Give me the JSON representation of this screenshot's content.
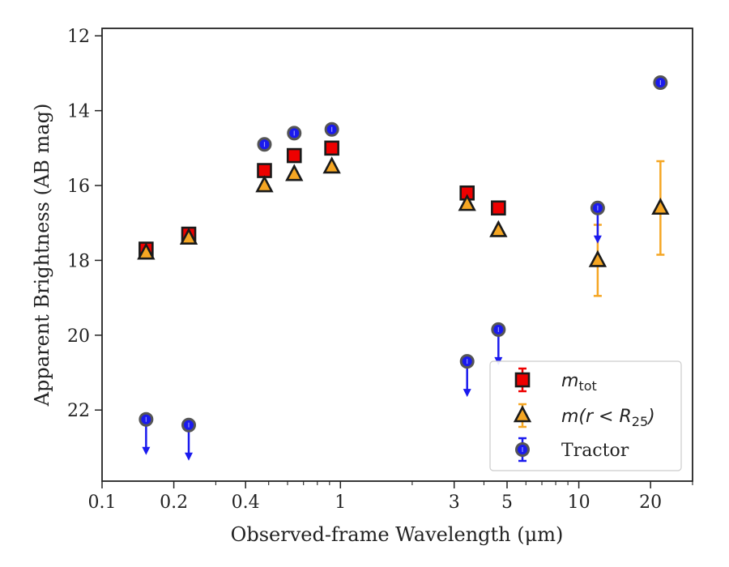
{
  "chart_data": {
    "type": "scatter",
    "xlabel": "Observed-frame Wavelength (μm)",
    "ylabel": "Apparent Brightness (AB mag)",
    "x_scale": "log",
    "xlim": [
      0.1,
      30
    ],
    "ylim": [
      23.9,
      11.8
    ],
    "y_inverted": true,
    "xticks": [
      {
        "value": 0.1,
        "label": "0.1"
      },
      {
        "value": 0.2,
        "label": "0.2"
      },
      {
        "value": 0.4,
        "label": "0.4"
      },
      {
        "value": 1,
        "label": "1"
      },
      {
        "value": 3,
        "label": "3"
      },
      {
        "value": 5,
        "label": "5"
      },
      {
        "value": 10,
        "label": "10"
      },
      {
        "value": 20,
        "label": "20"
      }
    ],
    "yticks": [
      {
        "value": 12,
        "label": "12"
      },
      {
        "value": 14,
        "label": "14"
      },
      {
        "value": 16,
        "label": "16"
      },
      {
        "value": 18,
        "label": "18"
      },
      {
        "value": 20,
        "label": "20"
      },
      {
        "value": 22,
        "label": "22"
      }
    ],
    "grid": false,
    "legend_position": "bottom-right",
    "series": [
      {
        "name": "m_tot",
        "legend_main": "m",
        "legend_sub": "tot",
        "marker": "square",
        "color": "#ee0000",
        "points": [
          {
            "x": 0.153,
            "y": 17.7,
            "err": 0.1
          },
          {
            "x": 0.231,
            "y": 17.3,
            "err": 0.1
          },
          {
            "x": 0.48,
            "y": 15.6
          },
          {
            "x": 0.64,
            "y": 15.2
          },
          {
            "x": 0.92,
            "y": 15.0
          },
          {
            "x": 3.4,
            "y": 16.2
          },
          {
            "x": 4.6,
            "y": 16.6
          }
        ]
      },
      {
        "name": "m(r < R25)",
        "legend_main": "m(r < R",
        "legend_sub": "25",
        "legend_tail": ")",
        "marker": "triangle",
        "color": "#f5a623",
        "points": [
          {
            "x": 0.153,
            "y": 17.8
          },
          {
            "x": 0.231,
            "y": 17.4
          },
          {
            "x": 0.48,
            "y": 16.0
          },
          {
            "x": 0.64,
            "y": 15.7
          },
          {
            "x": 0.92,
            "y": 15.5
          },
          {
            "x": 3.4,
            "y": 16.5
          },
          {
            "x": 4.6,
            "y": 17.2
          },
          {
            "x": 12.0,
            "y": 18.0,
            "err": 0.95
          },
          {
            "x": 22.0,
            "y": 16.6,
            "err": 1.25
          }
        ]
      },
      {
        "name": "Tractor",
        "legend_main": "Tractor",
        "marker": "circle",
        "color": "#1a1aee",
        "points": [
          {
            "x": 0.153,
            "y": 22.25,
            "upper_limit": true
          },
          {
            "x": 0.231,
            "y": 22.4,
            "upper_limit": true
          },
          {
            "x": 0.48,
            "y": 14.9
          },
          {
            "x": 0.64,
            "y": 14.6
          },
          {
            "x": 0.92,
            "y": 14.5
          },
          {
            "x": 3.4,
            "y": 20.7,
            "upper_limit": true
          },
          {
            "x": 4.6,
            "y": 19.85,
            "upper_limit": true
          },
          {
            "x": 12.0,
            "y": 16.6,
            "upper_limit": true
          },
          {
            "x": 22.0,
            "y": 13.25
          }
        ]
      }
    ]
  }
}
